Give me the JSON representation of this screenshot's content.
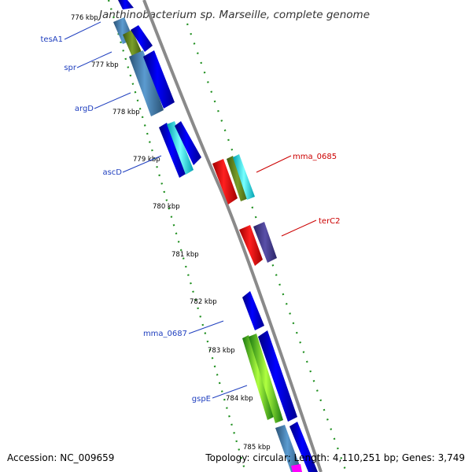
{
  "title": "Janthinobacterium sp. Marseille, complete genome",
  "footer": {
    "accession": "Accession: NC_009659",
    "summary": "Topology: circular; Length: 4,110,251 bp; Genes: 3,749"
  },
  "ticks": [
    "776 kbp",
    "777 kbp",
    "778 kbp",
    "779 kbp",
    "780 kbp",
    "781 kbp",
    "782 kbp",
    "783 kbp",
    "784 kbp",
    "785 kbp"
  ],
  "genes": {
    "tesA1": "tesA1",
    "spr": "spr",
    "argD": "argD",
    "ascD": "ascD",
    "mma_0685": "mma_0685",
    "terC2": "terC2",
    "mma_0687": "mma_0687",
    "gspE": "gspE"
  },
  "colors": {
    "backbone": "#8a8a8a",
    "dotted_track": "#1f8f1f",
    "gene_blue": "#0000ff",
    "gene_steel": "#4682b4",
    "gene_olive": "#6b8e23",
    "gene_cyan": "#00ffff",
    "gene_red": "#ff0000",
    "gene_slate": "#483d8b",
    "gene_green": "#32cd32",
    "gene_magenta": "#ff00ff",
    "label_blue": "#1f3fbf",
    "label_red": "#cc0000"
  }
}
